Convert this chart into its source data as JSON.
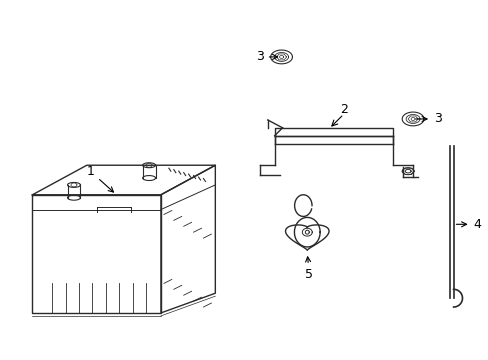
{
  "background_color": "#ffffff",
  "line_color": "#2a2a2a",
  "figsize": [
    4.89,
    3.6
  ],
  "dpi": 100,
  "label_fontsize": 9
}
